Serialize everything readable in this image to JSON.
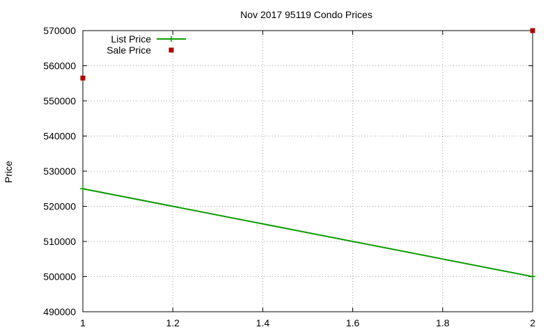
{
  "chart_data": {
    "type": "line",
    "title": "Nov 2017 95119 Condo Prices",
    "xlabel": "",
    "ylabel": "Price",
    "xlim": [
      1,
      2
    ],
    "ylim": [
      490000,
      570000
    ],
    "xticks": [
      "1",
      "1.2",
      "1.4",
      "1.6",
      "1.8",
      "2"
    ],
    "xtick_values": [
      1,
      1.2,
      1.4,
      1.6,
      1.8,
      2
    ],
    "yticks": [
      "490000",
      "500000",
      "510000",
      "520000",
      "530000",
      "540000",
      "550000",
      "560000",
      "570000"
    ],
    "ytick_values": [
      490000,
      500000,
      510000,
      520000,
      530000,
      540000,
      550000,
      560000,
      570000
    ],
    "grid": true,
    "legend_position": "top-left",
    "series": [
      {
        "name": "List Price",
        "style": "linespoints",
        "color": "#0a9a00",
        "x": [
          1,
          2
        ],
        "y": [
          525000,
          500000
        ]
      },
      {
        "name": "Sale Price",
        "style": "points",
        "color": "#b00000",
        "x": [
          1,
          2
        ],
        "y": [
          556500,
          570000
        ]
      }
    ]
  }
}
